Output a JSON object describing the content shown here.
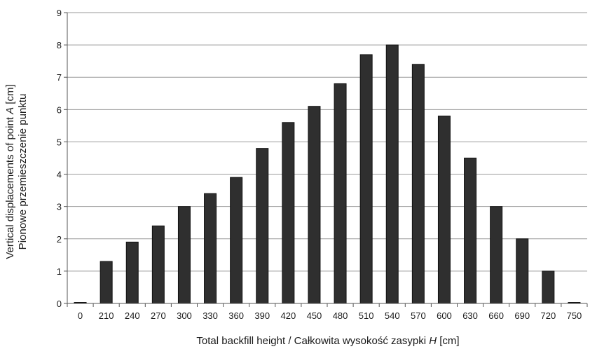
{
  "chart_data": {
    "type": "bar",
    "title": "",
    "categories": [
      "0",
      "210",
      "240",
      "270",
      "300",
      "330",
      "360",
      "390",
      "420",
      "450",
      "480",
      "510",
      "540",
      "570",
      "600",
      "630",
      "660",
      "690",
      "720",
      "750"
    ],
    "values": [
      0.03,
      1.3,
      1.9,
      2.4,
      3.0,
      3.4,
      3.9,
      4.8,
      5.6,
      6.1,
      6.8,
      7.7,
      8.0,
      7.4,
      5.8,
      4.5,
      3.0,
      2.0,
      1.0,
      0.03
    ],
    "xlabel": {
      "pre": "Total backfill height / Całkowita wysokość zasypki ",
      "var": "H",
      "post": " [cm]"
    },
    "ylabel": {
      "line1_pre": "Vertical displacements of point ",
      "line1_var": "A",
      "line1_post": " [cm]",
      "line2": "Pionowe przemieszczenie punktu"
    },
    "ylim": [
      0,
      9
    ],
    "yticks": [
      "0",
      "1",
      "2",
      "3",
      "4",
      "5",
      "6",
      "7",
      "8",
      "9"
    ],
    "grid": true,
    "legend": "none",
    "colors": {
      "bar": "#2f2f2f",
      "grid": "#9a9a9a",
      "axis": "#555555"
    }
  }
}
